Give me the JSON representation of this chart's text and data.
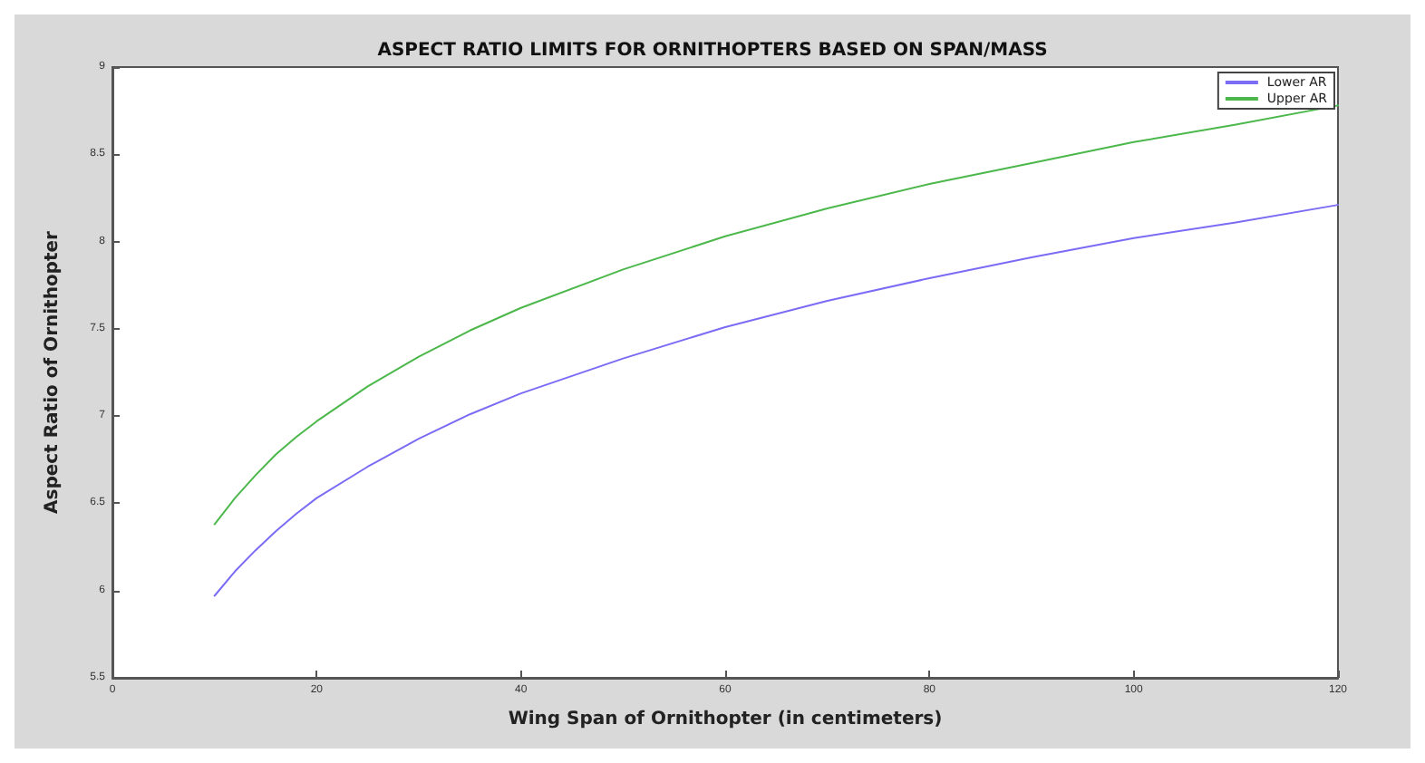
{
  "chart_data": {
    "type": "line",
    "title": "ASPECT RATIO LIMITS FOR ORNITHOPTERS BASED ON SPAN/MASS",
    "xlabel": "Wing Span of Ornithopter (in centimeters)",
    "ylabel": "Aspect Ratio of Ornithopter",
    "x": [
      10,
      12,
      14,
      16,
      18,
      20,
      25,
      30,
      35,
      40,
      50,
      60,
      70,
      80,
      90,
      100,
      110,
      120
    ],
    "series": [
      {
        "name": "Lower AR",
        "color": "#7b6cf5",
        "values": [
          5.97,
          6.11,
          6.23,
          6.34,
          6.44,
          6.53,
          6.71,
          6.87,
          7.01,
          7.13,
          7.33,
          7.51,
          7.66,
          7.79,
          7.91,
          8.02,
          8.11,
          8.21
        ]
      },
      {
        "name": "Upper AR",
        "color": "#4cb84c",
        "values": [
          6.38,
          6.53,
          6.66,
          6.78,
          6.88,
          6.97,
          7.17,
          7.34,
          7.49,
          7.62,
          7.84,
          8.03,
          8.19,
          8.33,
          8.45,
          8.57,
          8.67,
          8.78
        ]
      }
    ],
    "xlim": [
      0,
      120
    ],
    "xticks": [
      0,
      20,
      40,
      60,
      80,
      100,
      120
    ],
    "ylim": [
      5.5,
      9
    ],
    "yticks": [
      5.5,
      6,
      6.5,
      7,
      7.5,
      8,
      8.5,
      9
    ],
    "grid": false,
    "legend": "top right",
    "marker": "none",
    "line_style": "solid"
  }
}
